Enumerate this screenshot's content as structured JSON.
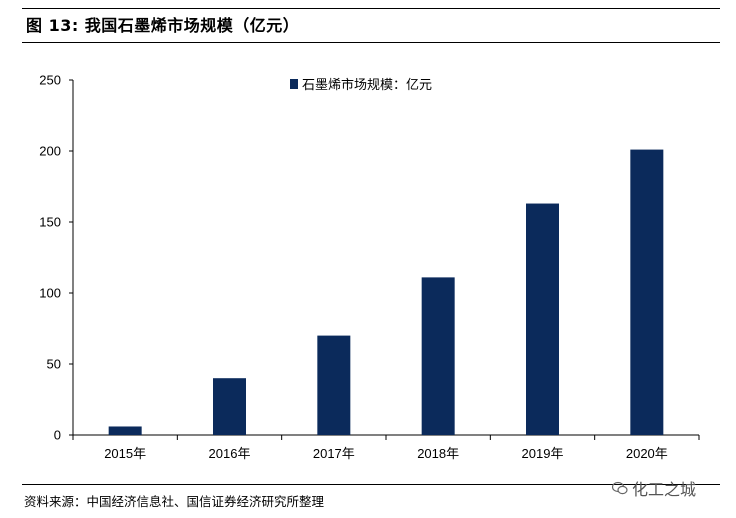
{
  "figure": {
    "title": "图 13:  我国石墨烯市场规模（亿元）",
    "source": "资料来源：中国经济信息社、国信证券经济研究所整理",
    "watermark": "化工之城"
  },
  "colors": {
    "bar": "#0b2a5b",
    "axis": "#000000"
  },
  "chart_data": {
    "type": "bar",
    "categories": [
      "2015年",
      "2016年",
      "2017年",
      "2018年",
      "2019年",
      "2020年"
    ],
    "series": [
      {
        "name": "石墨烯市场规模：亿元",
        "values": [
          6,
          40,
          70,
          111,
          163,
          201
        ]
      }
    ],
    "ylim": [
      0,
      250
    ],
    "yticks": [
      0,
      50,
      100,
      150,
      200,
      250
    ],
    "xlabel": "",
    "ylabel": "",
    "legend_position": "top-center",
    "grid": false
  }
}
